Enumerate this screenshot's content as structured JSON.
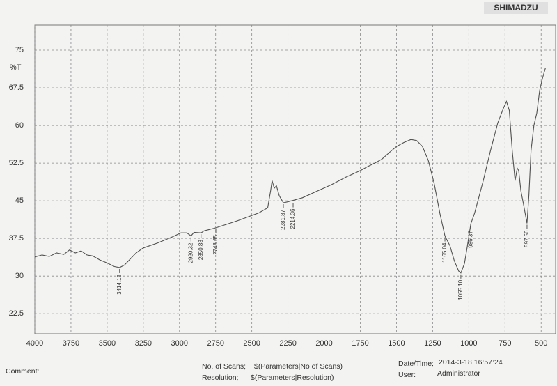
{
  "header": {
    "brand": "SHIMADZU"
  },
  "chart_data": {
    "type": "line",
    "ylabel": "%T",
    "xlim": [
      4000,
      400
    ],
    "xticks": [
      4000,
      3750,
      3500,
      3250,
      3000,
      2750,
      2500,
      2250,
      2000,
      1750,
      1500,
      1250,
      1000,
      750,
      500
    ],
    "ylim": [
      18.5,
      80
    ],
    "yticks": [
      22.5,
      30,
      37.5,
      45,
      52.5,
      60,
      67.5,
      75
    ],
    "grid": true,
    "x": [
      4000,
      3950,
      3900,
      3850,
      3800,
      3760,
      3720,
      3680,
      3640,
      3600,
      3550,
      3500,
      3450,
      3414,
      3380,
      3350,
      3300,
      3250,
      3150,
      3050,
      2990,
      2950,
      2920,
      2900,
      2850,
      2830,
      2750,
      2600,
      2450,
      2390,
      2370,
      2360,
      2345,
      2330,
      2310,
      2282,
      2250,
      2150,
      2050,
      1950,
      1850,
      1750,
      1700,
      1650,
      1600,
      1550,
      1500,
      1450,
      1400,
      1360,
      1320,
      1280,
      1240,
      1200,
      1165,
      1130,
      1100,
      1070,
      1055,
      1030,
      1010,
      986,
      960,
      900,
      850,
      800,
      760,
      740,
      720,
      700,
      680,
      665,
      655,
      640,
      620,
      598,
      585,
      570,
      550,
      530,
      510,
      490,
      470
    ],
    "series": [
      {
        "color": "#505050",
        "values": [
          33.8,
          34.2,
          33.9,
          34.6,
          34.3,
          35.2,
          34.6,
          35.0,
          34.2,
          34.0,
          33.2,
          32.6,
          31.9,
          31.7,
          32.2,
          33.1,
          34.6,
          35.6,
          36.6,
          37.8,
          38.6,
          38.6,
          38.0,
          38.7,
          38.6,
          39.0,
          39.6,
          41.0,
          42.6,
          43.6,
          47.0,
          49.0,
          47.5,
          48.0,
          46.0,
          44.6,
          44.8,
          45.6,
          46.9,
          48.2,
          49.7,
          51.0,
          51.8,
          52.5,
          53.3,
          54.6,
          55.8,
          56.6,
          57.2,
          57.0,
          55.8,
          53.0,
          48.5,
          42.5,
          38.0,
          36.0,
          33.0,
          31.0,
          30.6,
          32.5,
          36.0,
          40.4,
          42.5,
          49.0,
          55.0,
          60.5,
          63.5,
          64.8,
          63.0,
          55.0,
          49.0,
          51.5,
          51.0,
          47.0,
          44.0,
          40.5,
          46.0,
          55.0,
          60.0,
          62.5,
          67.0,
          69.5,
          71.5
        ]
      }
    ],
    "peaks": [
      {
        "value": 3414.12,
        "label": "3414.12"
      },
      {
        "value": 2920.32,
        "label": "2920.32"
      },
      {
        "value": 2850.88,
        "label": "2850.88"
      },
      {
        "value": 2748.65,
        "label": "2748.65"
      },
      {
        "value": 2281.87,
        "label": "2281.87"
      },
      {
        "value": 2214.36,
        "label": "2214.36"
      },
      {
        "value": 1165.04,
        "label": "1165.04"
      },
      {
        "value": 1055.1,
        "label": "1055.10"
      },
      {
        "value": 986.37,
        "label": "986.37"
      },
      {
        "value": 597.56,
        "label": "597.56"
      }
    ]
  },
  "footer": {
    "comment": "Comment:",
    "scans_label": "No. of Scans;",
    "scans_value": "$(Parameters|No of Scans)",
    "resolution_label": "Resolution;",
    "resolution_value": "$(Parameters|Resolution)",
    "date_label": "Date/Time;",
    "date_value": "2014-3-18 16:57:24",
    "user_label": "User:",
    "user_value": "Administrator"
  }
}
